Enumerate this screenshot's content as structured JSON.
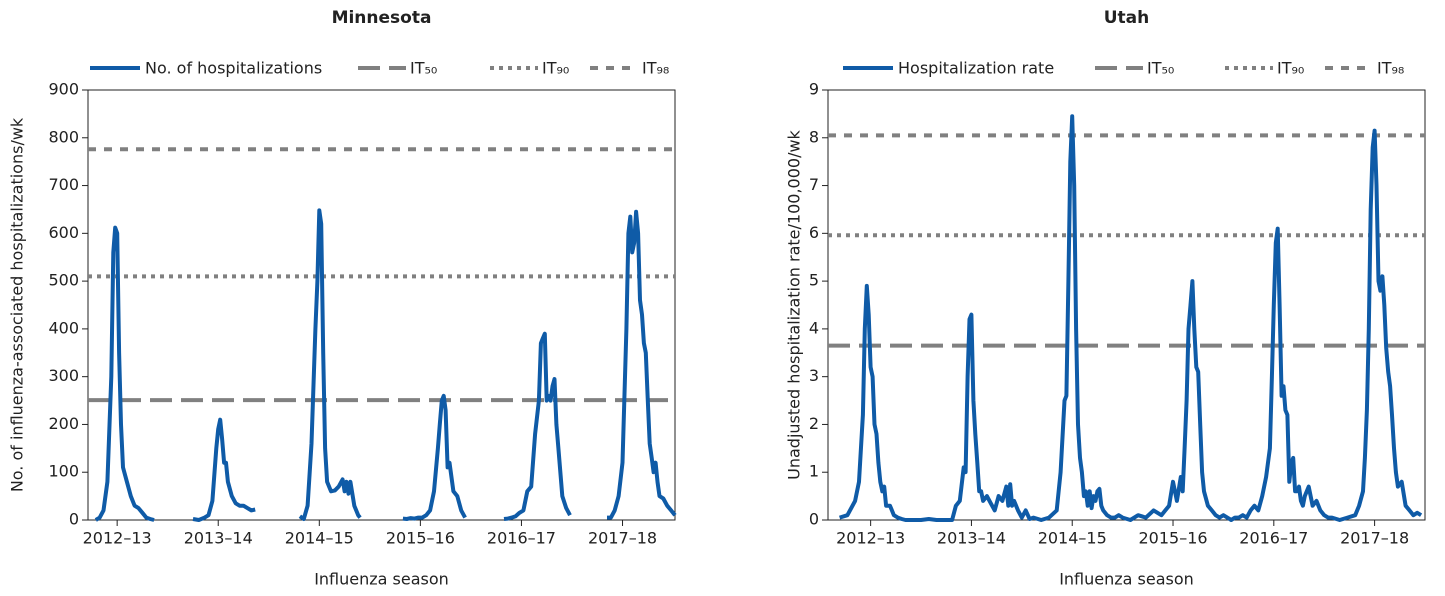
{
  "chart_data": [
    {
      "type": "line",
      "title": "Minnesota",
      "x_label": "Influenza season",
      "y_label": "No. of influenza-associated hospitalizations/wk",
      "xlim": [
        0,
        302
      ],
      "ylim": [
        0,
        900
      ],
      "xticks": [
        {
          "value": 15,
          "label": "2012–13"
        },
        {
          "value": 67,
          "label": "2013–14"
        },
        {
          "value": 119,
          "label": "2014–15"
        },
        {
          "value": 171,
          "label": "2015–16"
        },
        {
          "value": 223,
          "label": "2016–17"
        },
        {
          "value": 275,
          "label": "2017–18"
        }
      ],
      "yticks": [
        0,
        100,
        200,
        300,
        400,
        500,
        600,
        700,
        800,
        900
      ],
      "x": [
        4,
        6,
        8,
        10,
        12,
        13,
        14,
        15,
        16,
        17,
        18,
        20,
        22,
        24,
        26,
        28,
        30,
        32,
        34,
        44,
        54,
        57,
        60,
        62,
        64,
        66,
        67,
        68,
        69,
        70,
        71,
        72,
        74,
        76,
        78,
        80,
        82,
        84,
        86,
        98,
        109,
        111,
        113,
        115,
        117,
        118,
        119,
        120,
        121,
        122,
        123,
        125,
        127,
        129,
        131,
        132,
        133,
        134,
        135,
        137,
        139,
        140,
        151,
        162,
        164,
        166,
        168,
        170,
        172,
        174,
        176,
        178,
        180,
        181,
        182,
        183,
        184,
        185,
        186,
        188,
        190,
        192,
        194,
        204,
        214,
        216,
        218,
        220,
        222,
        224,
        226,
        228,
        230,
        232,
        233,
        234,
        235,
        236,
        237,
        238,
        239,
        240,
        241,
        242,
        244,
        246,
        248,
        258,
        267,
        269,
        271,
        273,
        275,
        277,
        278,
        279,
        280,
        281,
        282,
        283,
        284,
        285,
        286,
        287,
        288,
        289,
        290,
        291,
        292,
        293,
        294,
        296,
        298,
        300,
        302
      ],
      "series": [
        {
          "name": "No. of hospitalizations",
          "color": "#0f5ba7",
          "values": [
            0,
            5,
            20,
            80,
            300,
            560,
            612,
            600,
            350,
            200,
            110,
            80,
            50,
            30,
            25,
            15,
            5,
            2,
            0,
            null,
            2,
            0,
            5,
            10,
            40,
            150,
            190,
            210,
            170,
            120,
            120,
            80,
            50,
            35,
            30,
            30,
            25,
            20,
            22,
            null,
            8,
            2,
            30,
            160,
            400,
            500,
            648,
            620,
            350,
            150,
            80,
            60,
            62,
            70,
            85,
            60,
            80,
            55,
            80,
            30,
            10,
            5,
            null,
            3,
            2,
            4,
            3,
            5,
            5,
            10,
            20,
            60,
            150,
            200,
            250,
            260,
            230,
            110,
            120,
            60,
            50,
            20,
            5,
            null,
            2,
            3,
            5,
            8,
            15,
            20,
            60,
            70,
            180,
            250,
            370,
            380,
            390,
            250,
            260,
            250,
            280,
            295,
            200,
            150,
            50,
            25,
            10,
            null,
            5,
            5,
            20,
            50,
            120,
            400,
            600,
            635,
            560,
            580,
            645,
            600,
            460,
            430,
            370,
            350,
            250,
            160,
            130,
            100,
            120,
            80,
            50,
            45,
            30,
            20,
            10
          ]
        }
      ],
      "thresholds": [
        {
          "name": "IT₅₀",
          "value": 251,
          "color": "#808080",
          "dash": "long"
        },
        {
          "name": "IT₉₀",
          "value": 510,
          "color": "#808080",
          "dash": "dotted"
        },
        {
          "name": "IT₉₈",
          "value": 776,
          "color": "#808080",
          "dash": "short"
        }
      ]
    },
    {
      "type": "line",
      "title": "Utah",
      "x_label": "Influenza season",
      "y_label": "Unadjusted hospitalization rate/100,000/wk",
      "xlim": [
        0,
        308
      ],
      "ylim": [
        0,
        9
      ],
      "xticks": [
        {
          "value": 22,
          "label": "2012–13"
        },
        {
          "value": 74,
          "label": "2013–14"
        },
        {
          "value": 126,
          "label": "2014–15"
        },
        {
          "value": 178,
          "label": "2015–16"
        },
        {
          "value": 230,
          "label": "2016–17"
        },
        {
          "value": 282,
          "label": "2017–18"
        }
      ],
      "yticks": [
        0,
        1,
        2,
        3,
        4,
        5,
        6,
        7,
        8,
        9
      ],
      "x": [
        6,
        10,
        14,
        16,
        18,
        19,
        20,
        21,
        22,
        23,
        24,
        25,
        26,
        27,
        28,
        29,
        30,
        32,
        34,
        36,
        38,
        40,
        44,
        48,
        52,
        56,
        60,
        64,
        66,
        68,
        70,
        71,
        72,
        73,
        74,
        75,
        76,
        77,
        78,
        79,
        80,
        82,
        84,
        86,
        88,
        90,
        92,
        93,
        94,
        95,
        96,
        98,
        100,
        102,
        104,
        106,
        110,
        114,
        118,
        120,
        122,
        123,
        124,
        125,
        126,
        127,
        128,
        129,
        130,
        131,
        132,
        133,
        134,
        135,
        136,
        137,
        138,
        139,
        140,
        141,
        142,
        144,
        146,
        148,
        150,
        152,
        156,
        160,
        164,
        168,
        172,
        174,
        176,
        178,
        180,
        182,
        183,
        184,
        185,
        186,
        187,
        188,
        189,
        190,
        191,
        192,
        193,
        194,
        196,
        198,
        200,
        202,
        204,
        206,
        208,
        210,
        212,
        214,
        216,
        218,
        220,
        222,
        224,
        226,
        228,
        229,
        230,
        231,
        232,
        233,
        234,
        235,
        236,
        237,
        238,
        239,
        240,
        241,
        242,
        243,
        244,
        245,
        246,
        248,
        250,
        252,
        254,
        256,
        258,
        260,
        264,
        268,
        272,
        274,
        276,
        277,
        278,
        279,
        280,
        281,
        282,
        283,
        284,
        285,
        286,
        287,
        288,
        289,
        290,
        291,
        292,
        293,
        294,
        296,
        298,
        300,
        302,
        304,
        306
      ],
      "series": [
        {
          "name": "Hospitalization rate",
          "color": "#0f5ba7",
          "values": [
            0.05,
            0.1,
            0.4,
            0.8,
            2.2,
            4,
            4.9,
            4.3,
            3.2,
            3,
            2,
            1.8,
            1.2,
            0.8,
            0.6,
            0.7,
            0.3,
            0.3,
            0.1,
            0.05,
            0.02,
            0,
            0,
            0,
            0.02,
            0,
            0,
            0,
            0.3,
            0.4,
            1.1,
            1,
            3,
            4.2,
            4.3,
            2.5,
            1.8,
            1.2,
            0.6,
            0.6,
            0.4,
            0.5,
            0.35,
            0.2,
            0.5,
            0.4,
            0.7,
            0.3,
            0.75,
            0.3,
            0.4,
            0.2,
            0.05,
            0.2,
            0.02,
            0.05,
            0,
            0.05,
            0.2,
            1,
            2.5,
            2.6,
            5,
            7.5,
            8.45,
            7,
            4,
            2,
            1.3,
            1,
            0.5,
            0.6,
            0.3,
            0.6,
            0.25,
            0.5,
            0.4,
            0.6,
            0.65,
            0.3,
            0.2,
            0.1,
            0.05,
            0.05,
            0.1,
            0.05,
            0,
            0.1,
            0.05,
            0.2,
            0.1,
            0.2,
            0.3,
            0.8,
            0.4,
            0.9,
            0.6,
            1.5,
            2.5,
            4,
            4.5,
            5,
            4,
            3.2,
            3.1,
            2,
            1,
            0.6,
            0.3,
            0.2,
            0.1,
            0.05,
            0.1,
            0.05,
            0,
            0.05,
            0.05,
            0.1,
            0.05,
            0.2,
            0.3,
            0.2,
            0.5,
            0.9,
            1.5,
            3,
            4.5,
            5.8,
            6.1,
            4.5,
            2.6,
            2.8,
            2.3,
            2.2,
            0.8,
            1.2,
            1.3,
            0.6,
            0.6,
            0.7,
            0.4,
            0.3,
            0.5,
            0.7,
            0.3,
            0.4,
            0.2,
            0.1,
            0.05,
            0.05,
            0,
            0.05,
            0.1,
            0.3,
            0.6,
            1.3,
            2.3,
            4,
            6.5,
            7.8,
            8.15,
            7,
            5,
            4.8,
            5.1,
            4.5,
            3.6,
            3.1,
            2.8,
            2.2,
            1.5,
            1,
            0.7,
            0.8,
            0.3,
            0.2,
            0.1,
            0.15,
            0.1
          ]
        }
      ],
      "thresholds": [
        {
          "name": "IT₅₀",
          "value": 3.65,
          "color": "#808080",
          "dash": "long"
        },
        {
          "name": "IT₉₀",
          "value": 5.96,
          "color": "#808080",
          "dash": "dotted"
        },
        {
          "name": "IT₉₈",
          "value": 8.05,
          "color": "#808080",
          "dash": "short"
        }
      ]
    }
  ]
}
